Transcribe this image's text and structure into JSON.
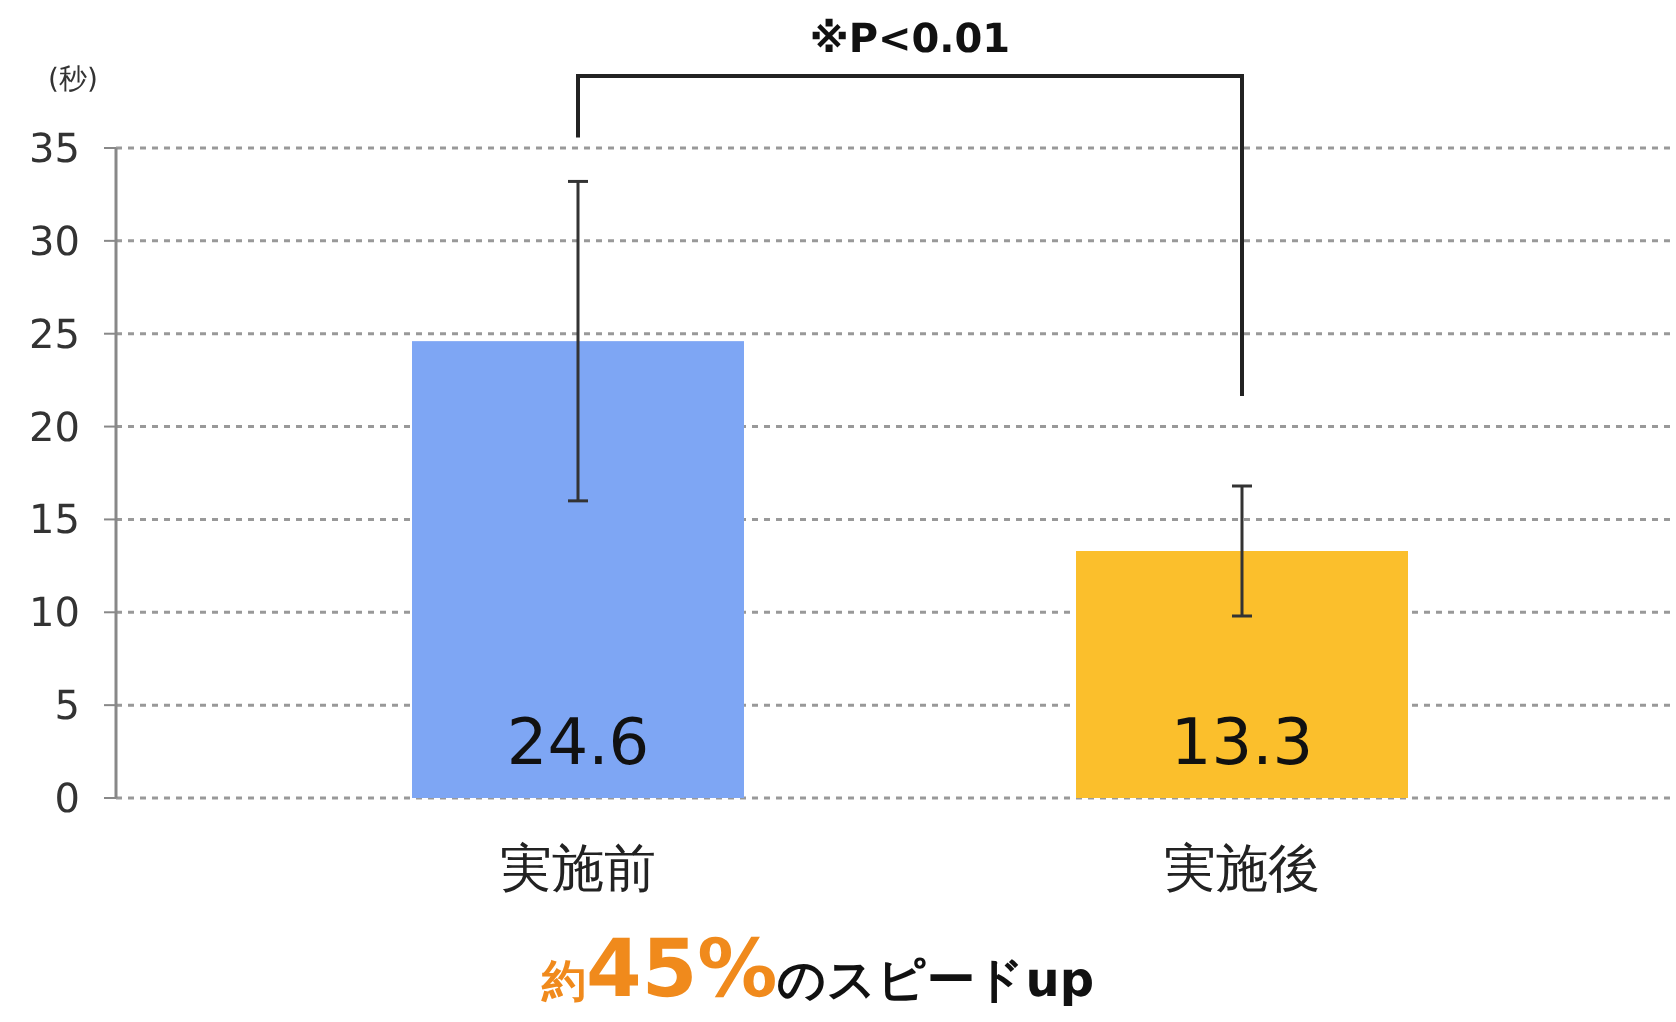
{
  "chart_data": {
    "type": "bar",
    "ylabel": "(秒)",
    "categories": [
      "実施前",
      "実施後"
    ],
    "values": [
      24.6,
      13.3
    ],
    "colors": [
      "#7ea6f4",
      "#fbbf2c"
    ],
    "errors": [
      8.6,
      3.5
    ],
    "ylim": [
      0,
      35
    ],
    "yticks": [
      0,
      5,
      10,
      15,
      20,
      25,
      30,
      35
    ],
    "grid": "y",
    "data_labels": true,
    "annotations": [
      "※P<0.01",
      "約45%のスピードup"
    ]
  }
}
